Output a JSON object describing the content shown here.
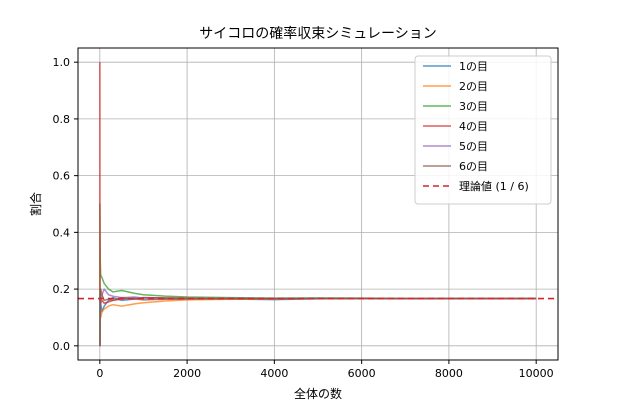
{
  "chart_data": {
    "type": "line",
    "title": "サイコロの確率収束シミュレーション",
    "xlabel": "全体の数",
    "ylabel": "割合",
    "xlim": [
      -500,
      10500
    ],
    "ylim": [
      -0.05,
      1.05
    ],
    "xticks": [
      0,
      2000,
      4000,
      6000,
      8000,
      10000
    ],
    "yticks": [
      0.0,
      0.2,
      0.4,
      0.6,
      0.8,
      1.0
    ],
    "xtick_labels": [
      "0",
      "2000",
      "4000",
      "6000",
      "8000",
      "10000"
    ],
    "ytick_labels": [
      "0.0",
      "0.2",
      "0.4",
      "0.6",
      "0.8",
      "1.0"
    ],
    "grid": true,
    "legend_position": "top-right",
    "series": [
      {
        "name": "1の目",
        "color": "#1f77b4",
        "x": [
          1,
          2,
          5,
          10,
          20,
          50,
          100,
          200,
          300,
          500,
          800,
          1000,
          1500,
          2000,
          3000,
          4000,
          5000,
          6000,
          7000,
          8000,
          9000,
          10000
        ],
        "y": [
          0.0,
          0.0,
          0.2,
          0.1,
          0.15,
          0.12,
          0.14,
          0.16,
          0.17,
          0.16,
          0.165,
          0.17,
          0.168,
          0.166,
          0.165,
          0.163,
          0.166,
          0.167,
          0.166,
          0.167,
          0.166,
          0.166
        ]
      },
      {
        "name": "2の目",
        "color": "#ff7f0e",
        "x": [
          1,
          2,
          5,
          10,
          20,
          50,
          100,
          200,
          300,
          500,
          800,
          1000,
          1500,
          2000,
          3000,
          4000,
          5000,
          6000,
          7000,
          8000,
          9000,
          10000
        ],
        "y": [
          0.0,
          0.0,
          0.2,
          0.1,
          0.1,
          0.12,
          0.13,
          0.14,
          0.145,
          0.14,
          0.148,
          0.152,
          0.158,
          0.162,
          0.164,
          0.165,
          0.166,
          0.166,
          0.167,
          0.167,
          0.166,
          0.167
        ]
      },
      {
        "name": "3の目",
        "color": "#2ca02c",
        "x": [
          1,
          2,
          5,
          10,
          20,
          50,
          100,
          200,
          300,
          500,
          800,
          1000,
          1500,
          2000,
          3000,
          4000,
          5000,
          6000,
          7000,
          8000,
          9000,
          10000
        ],
        "y": [
          0.0,
          0.5,
          0.4,
          0.3,
          0.25,
          0.24,
          0.22,
          0.2,
          0.19,
          0.195,
          0.185,
          0.18,
          0.175,
          0.172,
          0.17,
          0.168,
          0.169,
          0.168,
          0.167,
          0.167,
          0.167,
          0.167
        ]
      },
      {
        "name": "4の目",
        "color": "#d62728",
        "x": [
          1,
          2,
          5,
          10,
          20,
          50,
          100,
          200,
          300,
          500,
          800,
          1000,
          1500,
          2000,
          3000,
          4000,
          5000,
          6000,
          7000,
          8000,
          9000,
          10000
        ],
        "y": [
          1.0,
          0.5,
          0.2,
          0.2,
          0.15,
          0.16,
          0.15,
          0.155,
          0.16,
          0.165,
          0.168,
          0.17,
          0.169,
          0.168,
          0.167,
          0.166,
          0.166,
          0.167,
          0.167,
          0.166,
          0.167,
          0.167
        ]
      },
      {
        "name": "5の目",
        "color": "#9467bd",
        "x": [
          1,
          2,
          5,
          10,
          20,
          50,
          100,
          200,
          300,
          500,
          800,
          1000,
          1500,
          2000,
          3000,
          4000,
          5000,
          6000,
          7000,
          8000,
          9000,
          10000
        ],
        "y": [
          0.0,
          0.0,
          0.0,
          0.1,
          0.15,
          0.18,
          0.2,
          0.18,
          0.175,
          0.17,
          0.172,
          0.168,
          0.166,
          0.167,
          0.168,
          0.167,
          0.167,
          0.166,
          0.167,
          0.167,
          0.167,
          0.166
        ]
      },
      {
        "name": "6の目",
        "color": "#8c564b",
        "x": [
          1,
          2,
          5,
          10,
          20,
          50,
          100,
          200,
          300,
          500,
          800,
          1000,
          1500,
          2000,
          3000,
          4000,
          5000,
          6000,
          7000,
          8000,
          9000,
          10000
        ],
        "y": [
          0.0,
          0.0,
          0.0,
          0.2,
          0.2,
          0.18,
          0.16,
          0.165,
          0.16,
          0.17,
          0.165,
          0.162,
          0.164,
          0.165,
          0.166,
          0.167,
          0.166,
          0.167,
          0.166,
          0.167,
          0.167,
          0.167
        ]
      }
    ],
    "reference_line": {
      "name": "理論値 (1 / 6)",
      "y": 0.16667,
      "color": "#d62728"
    }
  }
}
